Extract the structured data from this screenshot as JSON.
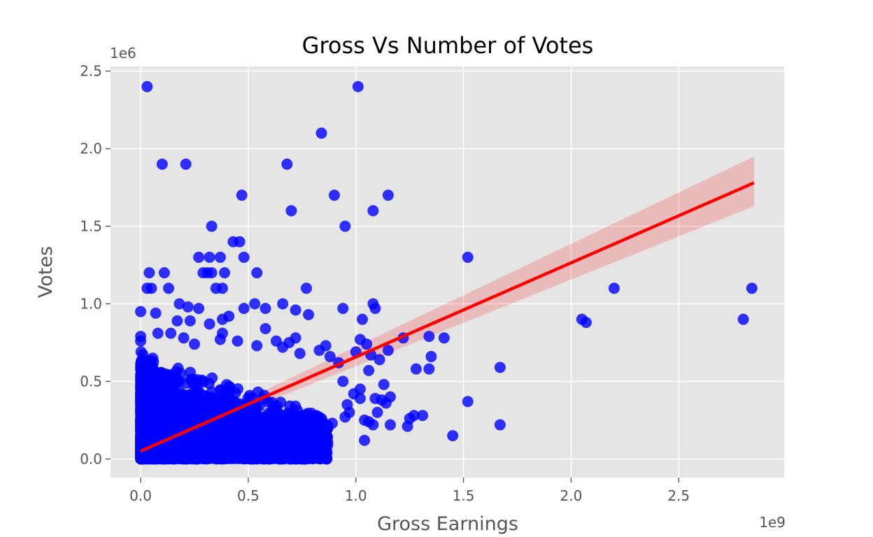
{
  "chart_data": {
    "type": "scatter",
    "title": "Gross Vs Number of Votes",
    "xlabel": "Gross Earnings",
    "ylabel": "Votes",
    "x_offset_label": "1e9",
    "y_offset_label": "1e6",
    "xlim": [
      -0.14,
      2.99
    ],
    "ylim": [
      -0.12,
      2.53
    ],
    "xticks": [
      0.0,
      0.5,
      1.0,
      1.5,
      2.0,
      2.5
    ],
    "xtick_labels": [
      "0.0",
      "0.5",
      "1.0",
      "1.5",
      "2.0",
      "2.5"
    ],
    "yticks": [
      0.0,
      0.5,
      1.0,
      1.5,
      2.0,
      2.5
    ],
    "ytick_labels": [
      "0.0",
      "0.5",
      "1.0",
      "1.5",
      "2.0",
      "2.5"
    ],
    "grid": true,
    "background": "#e5e5e5",
    "point_color": "#0000ff",
    "line_color": "#ff0000",
    "band_color": "#ff0000",
    "series": [
      {
        "kind": "points",
        "points": [
          [
            0.03,
            2.4
          ],
          [
            1.01,
            2.4
          ],
          [
            0.84,
            2.1
          ],
          [
            0.1,
            1.9
          ],
          [
            0.21,
            1.9
          ],
          [
            0.68,
            1.9
          ],
          [
            0.47,
            1.7
          ],
          [
            0.9,
            1.7
          ],
          [
            1.15,
            1.7
          ],
          [
            0.7,
            1.6
          ],
          [
            1.08,
            1.6
          ],
          [
            0.33,
            1.5
          ],
          [
            0.95,
            1.5
          ],
          [
            0.46,
            1.4
          ],
          [
            0.43,
            1.4
          ],
          [
            0.27,
            1.3
          ],
          [
            0.32,
            1.3
          ],
          [
            0.37,
            1.3
          ],
          [
            0.48,
            1.3
          ],
          [
            1.52,
            1.3
          ],
          [
            0.04,
            1.2
          ],
          [
            0.11,
            1.2
          ],
          [
            0.29,
            1.2
          ],
          [
            0.31,
            1.2
          ],
          [
            0.33,
            1.2
          ],
          [
            0.39,
            1.2
          ],
          [
            0.54,
            1.2
          ],
          [
            0.03,
            1.1
          ],
          [
            0.05,
            1.1
          ],
          [
            0.13,
            1.1
          ],
          [
            0.35,
            1.1
          ],
          [
            0.38,
            1.1
          ],
          [
            0.77,
            1.1
          ],
          [
            2.2,
            1.1
          ],
          [
            2.84,
            1.1
          ],
          [
            0.0,
            0.95
          ],
          [
            0.07,
            0.94
          ],
          [
            0.18,
            1.0
          ],
          [
            0.22,
            0.98
          ],
          [
            0.27,
            0.97
          ],
          [
            0.53,
            1.0
          ],
          [
            0.48,
            0.97
          ],
          [
            0.58,
            0.97
          ],
          [
            0.66,
            1.0
          ],
          [
            0.72,
            0.96
          ],
          [
            0.78,
            0.93
          ],
          [
            0.94,
            0.97
          ],
          [
            1.08,
            1.0
          ],
          [
            1.09,
            0.97
          ],
          [
            0.38,
            0.9
          ],
          [
            0.41,
            0.92
          ],
          [
            0.17,
            0.89
          ],
          [
            0.23,
            0.89
          ],
          [
            0.32,
            0.87
          ],
          [
            1.03,
            0.9
          ],
          [
            2.05,
            0.9
          ],
          [
            2.07,
            0.88
          ],
          [
            2.8,
            0.9
          ],
          [
            0.58,
            0.84
          ],
          [
            0.0,
            0.79
          ],
          [
            0.08,
            0.81
          ],
          [
            0.14,
            0.81
          ],
          [
            0.38,
            0.81
          ],
          [
            0.0,
            0.76
          ],
          [
            0.2,
            0.78
          ],
          [
            0.25,
            0.74
          ],
          [
            0.37,
            0.77
          ],
          [
            0.45,
            0.76
          ],
          [
            0.54,
            0.73
          ],
          [
            0.63,
            0.76
          ],
          [
            0.69,
            0.75
          ],
          [
            0.72,
            0.78
          ],
          [
            0.86,
            0.73
          ],
          [
            1.02,
            0.77
          ],
          [
            1.05,
            0.74
          ],
          [
            1.22,
            0.78
          ],
          [
            1.34,
            0.79
          ],
          [
            1.41,
            0.78
          ],
          [
            0.66,
            0.72
          ],
          [
            0.74,
            0.68
          ],
          [
            0.83,
            0.7
          ],
          [
            0.88,
            0.66
          ],
          [
            1.0,
            0.69
          ],
          [
            1.07,
            0.67
          ],
          [
            1.11,
            0.64
          ],
          [
            1.15,
            0.7
          ],
          [
            1.35,
            0.66
          ],
          [
            0.92,
            0.62
          ],
          [
            1.06,
            0.57
          ],
          [
            1.28,
            0.58
          ],
          [
            1.34,
            0.58
          ],
          [
            1.67,
            0.59
          ],
          [
            0.94,
            0.5
          ],
          [
            1.02,
            0.45
          ],
          [
            1.13,
            0.48
          ],
          [
            0.99,
            0.42
          ],
          [
            1.02,
            0.39
          ],
          [
            1.09,
            0.39
          ],
          [
            1.12,
            0.38
          ],
          [
            1.14,
            0.36
          ],
          [
            1.16,
            0.4
          ],
          [
            1.52,
            0.37
          ],
          [
            0.96,
            0.35
          ],
          [
            0.97,
            0.3
          ],
          [
            1.1,
            0.3
          ],
          [
            0.95,
            0.27
          ],
          [
            1.04,
            0.25
          ],
          [
            1.06,
            0.24
          ],
          [
            1.08,
            0.22
          ],
          [
            1.16,
            0.22
          ],
          [
            1.24,
            0.21
          ],
          [
            1.25,
            0.26
          ],
          [
            1.27,
            0.28
          ],
          [
            1.31,
            0.28
          ],
          [
            1.67,
            0.22
          ],
          [
            1.45,
            0.15
          ],
          [
            1.04,
            0.12
          ],
          [
            0.89,
            0.23
          ],
          [
            0.86,
            0.2
          ],
          [
            0.8,
            0.22
          ],
          [
            0.76,
            0.17
          ],
          [
            0.7,
            0.03
          ],
          [
            0.47,
            0.01
          ],
          [
            0.6,
            0.14
          ],
          [
            0.55,
            0.09
          ]
        ]
      },
      {
        "kind": "cluster",
        "x_range": [
          0.0,
          0.87
        ],
        "y_range": [
          0.0,
          0.72
        ],
        "count": 3200,
        "note_shape": "triangular_dense"
      },
      {
        "kind": "regression",
        "x": [
          0.0,
          2.85
        ],
        "y": [
          0.05,
          1.78
        ],
        "ci_low": [
          0.04,
          1.63
        ],
        "ci_high": [
          0.06,
          1.95
        ]
      }
    ]
  }
}
